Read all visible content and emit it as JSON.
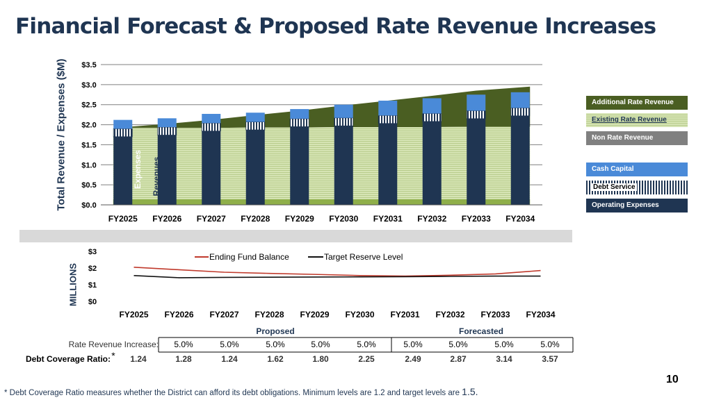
{
  "title": "Financial Forecast & Proposed Rate Revenue Increases",
  "page_number": "10",
  "colors": {
    "operating": "#1f3552",
    "debt": "#1f3552",
    "cash": "#4a8ad8",
    "additional": "#4a5e22",
    "existing": "#d6e4b4",
    "nonrate": "#8faf4a",
    "fund_line": "#c0392b",
    "target_line": "#111111"
  },
  "chart_data": [
    {
      "type": "bar",
      "title": "",
      "ylabel": "Total Revenue / Expenses ($M)",
      "ylim": [
        0,
        3.5
      ],
      "yticks": [
        "$0.0",
        "$0.5",
        "$1.0",
        "$1.5",
        "$2.0",
        "$2.5",
        "$3.0",
        "$3.5"
      ],
      "categories": [
        "FY2025",
        "FY2026",
        "FY2027",
        "FY2028",
        "FY2029",
        "FY2030",
        "FY2031",
        "FY2032",
        "FY2033",
        "FY2034"
      ],
      "bar_label_expenses": "Expenses",
      "bar_label_revenues": "Revenues",
      "expense_series": [
        {
          "name": "Operating Expenses",
          "values": [
            1.7,
            1.74,
            1.84,
            1.87,
            1.95,
            1.97,
            2.03,
            2.08,
            2.15,
            2.22
          ]
        },
        {
          "name": "Debt Service",
          "values": [
            0.2,
            0.2,
            0.2,
            0.2,
            0.2,
            0.2,
            0.2,
            0.2,
            0.2,
            0.2
          ]
        },
        {
          "name": "Cash Capital",
          "values": [
            0.22,
            0.22,
            0.23,
            0.23,
            0.24,
            0.33,
            0.37,
            0.38,
            0.4,
            0.39
          ]
        }
      ],
      "revenue_series": [
        {
          "name": "Non Rate Revenue",
          "values": [
            0.14,
            0.14,
            0.14,
            0.14,
            0.14,
            0.14,
            0.14,
            0.14,
            0.14,
            0.14
          ]
        },
        {
          "name": "Existing Rate Revenue",
          "values": [
            1.78,
            1.78,
            1.78,
            1.79,
            1.79,
            1.8,
            1.8,
            1.8,
            1.81,
            1.81
          ]
        },
        {
          "name": "Additional Rate Revenue",
          "values": [
            0.0,
            0.1,
            0.2,
            0.31,
            0.42,
            0.54,
            0.66,
            0.78,
            0.9,
            1.0
          ]
        }
      ],
      "legend": [
        "Additional Rate Revenue",
        "Existing Rate Revenue",
        "Non Rate Revenue",
        "Cash Capital",
        "Debt Service",
        "Operating Expenses"
      ]
    },
    {
      "type": "line",
      "ylabel": "MILLIONS",
      "ylim": [
        0,
        3
      ],
      "yticks": [
        "$0",
        "$1",
        "$2",
        "$3"
      ],
      "categories": [
        "FY2025",
        "FY2026",
        "FY2027",
        "FY2028",
        "FY2029",
        "FY2030",
        "FY2031",
        "FY2032",
        "FY2033",
        "FY2034"
      ],
      "series": [
        {
          "name": "Ending Fund Balance",
          "values": [
            2.05,
            1.9,
            1.75,
            1.68,
            1.62,
            1.55,
            1.52,
            1.57,
            1.65,
            1.85
          ]
        },
        {
          "name": "Target Reserve Level",
          "values": [
            1.55,
            1.42,
            1.44,
            1.45,
            1.46,
            1.47,
            1.48,
            1.5,
            1.52,
            1.52
          ]
        }
      ]
    }
  ],
  "table": {
    "group_proposed": "Proposed",
    "group_forecasted": "Forecasted",
    "rate_label": "Rate Revenue Increase:",
    "rate_values": [
      "5.0%",
      "5.0%",
      "5.0%",
      "5.0%",
      "5.0%",
      "5.0%",
      "5.0%",
      "5.0%",
      "5.0%"
    ],
    "dcr_label": "Debt Coverage Ratio:",
    "dcr_marker": "*",
    "dcr_values": [
      "1.24",
      "1.28",
      "1.24",
      "1.62",
      "1.80",
      "2.25",
      "2.49",
      "2.87",
      "3.14",
      "3.57"
    ]
  },
  "footnote_text": "* Debt Coverage Ratio measures whether the District can afford its debt obligations. Minimum levels are 1.2 and target levels are ",
  "footnote_value": "1.5."
}
